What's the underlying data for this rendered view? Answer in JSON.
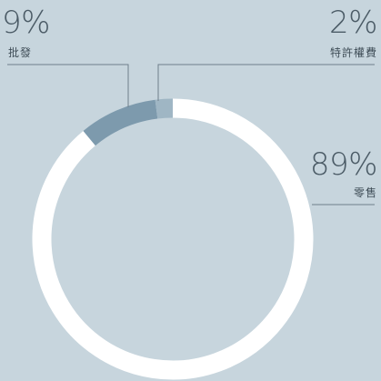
{
  "chart_data": {
    "type": "pie",
    "style": "donut",
    "categories": [
      "零售",
      "批發",
      "特許權費"
    ],
    "values": [
      89,
      9,
      2
    ],
    "value_labels": [
      "89%",
      "9%",
      "2%"
    ],
    "colors": [
      "#ffffff",
      "#7d9aad",
      "#9fb6c4"
    ],
    "background": "#c7d5dd",
    "leader_line_color": "#6f7f8a",
    "legend": "callouts"
  }
}
